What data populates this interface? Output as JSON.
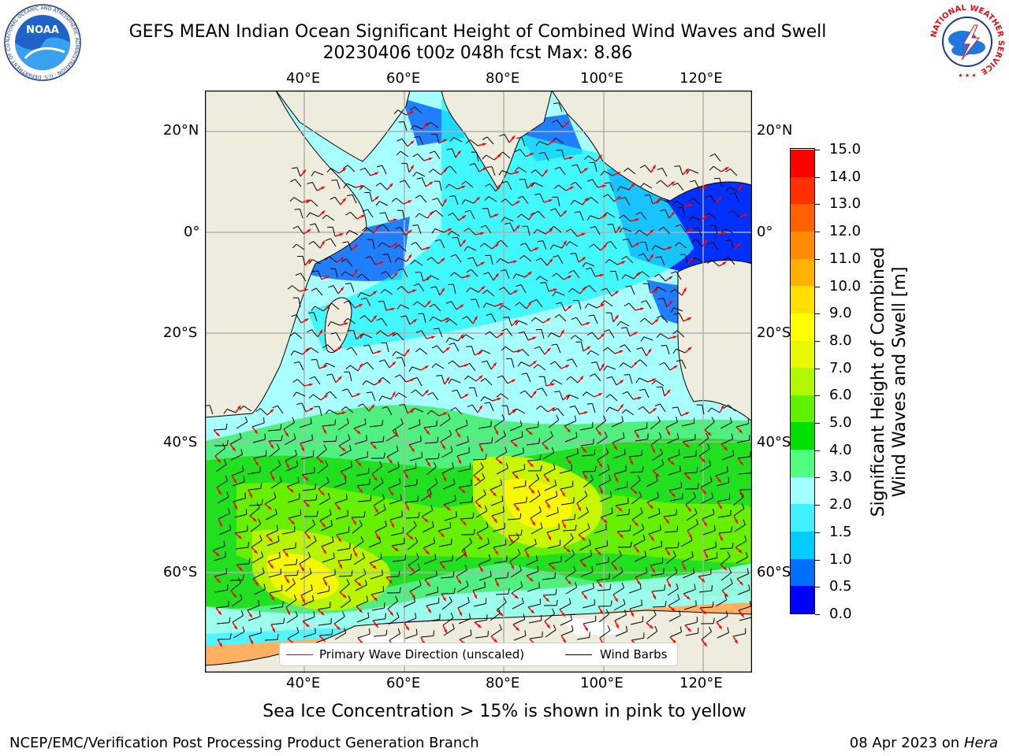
{
  "header": {
    "title_line1": "GEFS MEAN Indian Ocean Significant Height of Combined Wind Waves and Swell",
    "title_line2": "20230406 t00z 048h fcst   Max: 8.86"
  },
  "logos": {
    "left": "NOAA",
    "right_text": "NATIONAL WEATHER SERVICE",
    "noaa_ring_text": "NATIONAL OCEANIC AND ATMOSPHERIC ADMINISTRATION · U.S. DEPARTMENT OF COMMERCE"
  },
  "map": {
    "top_lon_labels": [
      "40°E",
      "60°E",
      "80°E",
      "100°E",
      "120°E"
    ],
    "bottom_lon_labels": [
      "40°E",
      "60°E",
      "80°E",
      "100°E",
      "120°E"
    ],
    "left_lat_labels": [
      "20°N",
      "0°",
      "20°S",
      "40°S",
      "60°S"
    ],
    "right_lat_labels": [
      "20°N",
      "0°",
      "20°S",
      "40°S",
      "60°S"
    ],
    "colors": {
      "land": "#eeecdc",
      "grid": "#b0b0b0",
      "wave_arrow": "#ff0000",
      "wind_barb": "#000000"
    }
  },
  "legend": {
    "wave_label": "Primary Wave Direction (unscaled)",
    "wind_label": "Wind Barbs"
  },
  "colorbar": {
    "label_line1": "Significant Height of Combined",
    "label_line2": "Wind Waves and Swell [m]",
    "ticks": [
      "0.0",
      "0.5",
      "1.0",
      "1.5",
      "2.0",
      "3.0",
      "4.0",
      "5.0",
      "6.0",
      "7.0",
      "8.0",
      "9.0",
      "10.0",
      "11.0",
      "12.0",
      "13.0",
      "14.0",
      "15.0"
    ],
    "colors": [
      "#0000ff",
      "#0070ff",
      "#00ccff",
      "#40f0ff",
      "#a0ffff",
      "#50ff80",
      "#00e000",
      "#60f000",
      "#b0f800",
      "#e8f800",
      "#ffff00",
      "#ffe000",
      "#ffb000",
      "#ff8c00",
      "#ff6000",
      "#ff3000",
      "#ff0000"
    ]
  },
  "footer": {
    "caption": "Sea Ice Concentration > 15% is shown in pink to yellow",
    "left": "NCEP/EMC/Verification Post Processing Product Generation Branch",
    "right_prefix": "08 Apr 2023 on ",
    "right_host": "Hera"
  }
}
